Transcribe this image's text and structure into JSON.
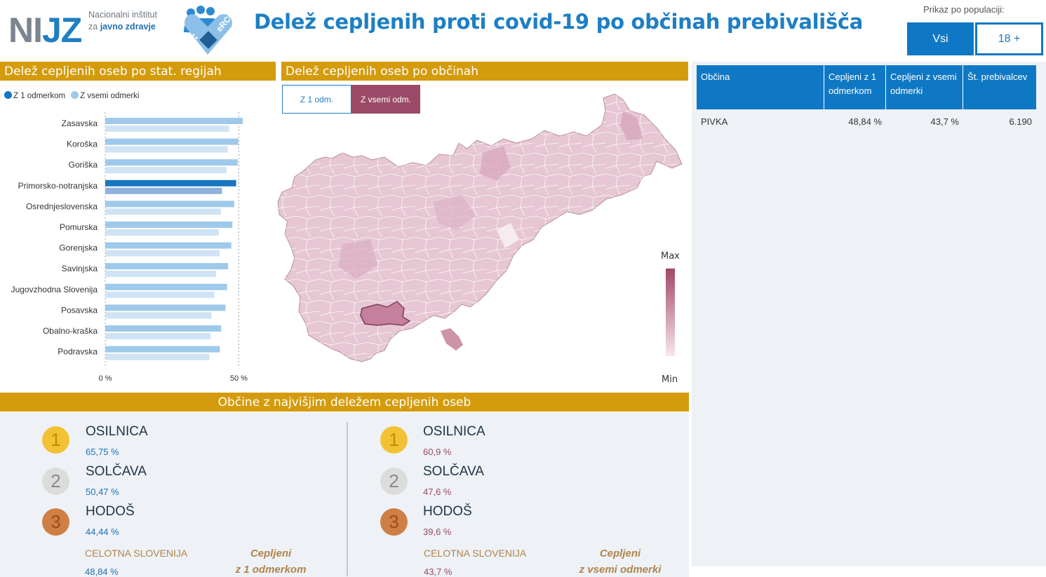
{
  "header": {
    "logo_ni": "NI",
    "logo_jz": "JZ",
    "institute_line1": "Nacionalni inštitut",
    "institute_line2_prefix": "za ",
    "institute_line2_bold": "javno zdravje",
    "erco_text": "eRCO",
    "title": "Delež cepljenih proti covid-19 po občinah prebivališča",
    "population_label": "Prikaz po populaciji:",
    "population_options": [
      "Vsi",
      "18 +"
    ],
    "population_selected": "Vsi"
  },
  "regions_panel": {
    "title": "Delež cepljenih oseb po stat. regijah",
    "legend": [
      {
        "label": "Z 1 odmerkom",
        "color": "#1777c1"
      },
      {
        "label": "Z vsemi odmerki",
        "color": "#9ec9ea"
      }
    ]
  },
  "chart_data": {
    "type": "bar",
    "orientation": "horizontal",
    "categories": [
      "Zasavska",
      "Koroška",
      "Goriška",
      "Primorsko-notranjska",
      "Osrednjeslovenska",
      "Pomurska",
      "Gorenjska",
      "Savinjska",
      "Jugovzhodna Slovenija",
      "Posavska",
      "Obalno-kraška",
      "Podravska"
    ],
    "series": [
      {
        "name": "Z 1 odmerkom",
        "values": [
          51.5,
          49.8,
          49.6,
          49.0,
          48.3,
          47.6,
          47.2,
          46.0,
          45.6,
          45.0,
          43.4,
          42.9
        ],
        "color": "#9ec9ea",
        "highlight_color": "#1777c1"
      },
      {
        "name": "Z vsemi odmerki",
        "values": [
          46.4,
          45.9,
          45.4,
          43.7,
          43.3,
          42.6,
          42.8,
          41.5,
          40.9,
          39.8,
          39.4,
          39.0
        ],
        "color": "#cfe3f4",
        "highlight_color": "#8fb2dd"
      }
    ],
    "highlighted_category": "Primorsko-notranjska",
    "xlim": [
      0,
      52
    ],
    "xticks": [
      "0 %",
      "50 %"
    ],
    "xtick_values": [
      0,
      50
    ],
    "grid": false
  },
  "map_panel": {
    "title": "Delež cepljenih oseb po občinah",
    "buttons": [
      "Z 1 odm.",
      "Z vsemi odm."
    ],
    "selected": "Z vsemi odm.",
    "scale_max": "Max",
    "scale_min": "Min",
    "colors": {
      "max": "#a3476b",
      "min": "#f8e6ee"
    }
  },
  "table": {
    "headers": [
      "Občina",
      "Cepljeni z 1 odmerkom",
      "Cepljeni z vsemi odmerki",
      "Št. prebivalcev"
    ],
    "rows": [
      [
        "PIVKA",
        "48,84 %",
        "43,7 %",
        "6.190"
      ]
    ]
  },
  "top_municipalities": {
    "title": "Občine z najvišjim deležem cepljenih oseb",
    "one_dose": {
      "items": [
        {
          "rank": "1",
          "name": "OSILNICA",
          "value": "65,75 %"
        },
        {
          "rank": "2",
          "name": "SOLČAVA",
          "value": "50,47 %"
        },
        {
          "rank": "3",
          "name": "HODOŠ",
          "value": "44,44 %"
        }
      ],
      "total_label": "CELOTNA SLOVENIJA",
      "total_value": "48,84 %",
      "caption_line1": "Cepljeni",
      "caption_line2": "z 1 odmerkom"
    },
    "all_doses": {
      "items": [
        {
          "rank": "1",
          "name": "OSILNICA",
          "value": "60,9 %"
        },
        {
          "rank": "2",
          "name": "SOLČAVA",
          "value": "47,6 %"
        },
        {
          "rank": "3",
          "name": "HODOŠ",
          "value": "39,6 %"
        }
      ],
      "total_label": "CELOTNA SLOVENIJA",
      "total_value": "43,7 %",
      "caption_line1": "Cepljeni",
      "caption_line2": "z vsemi odmerki"
    }
  }
}
